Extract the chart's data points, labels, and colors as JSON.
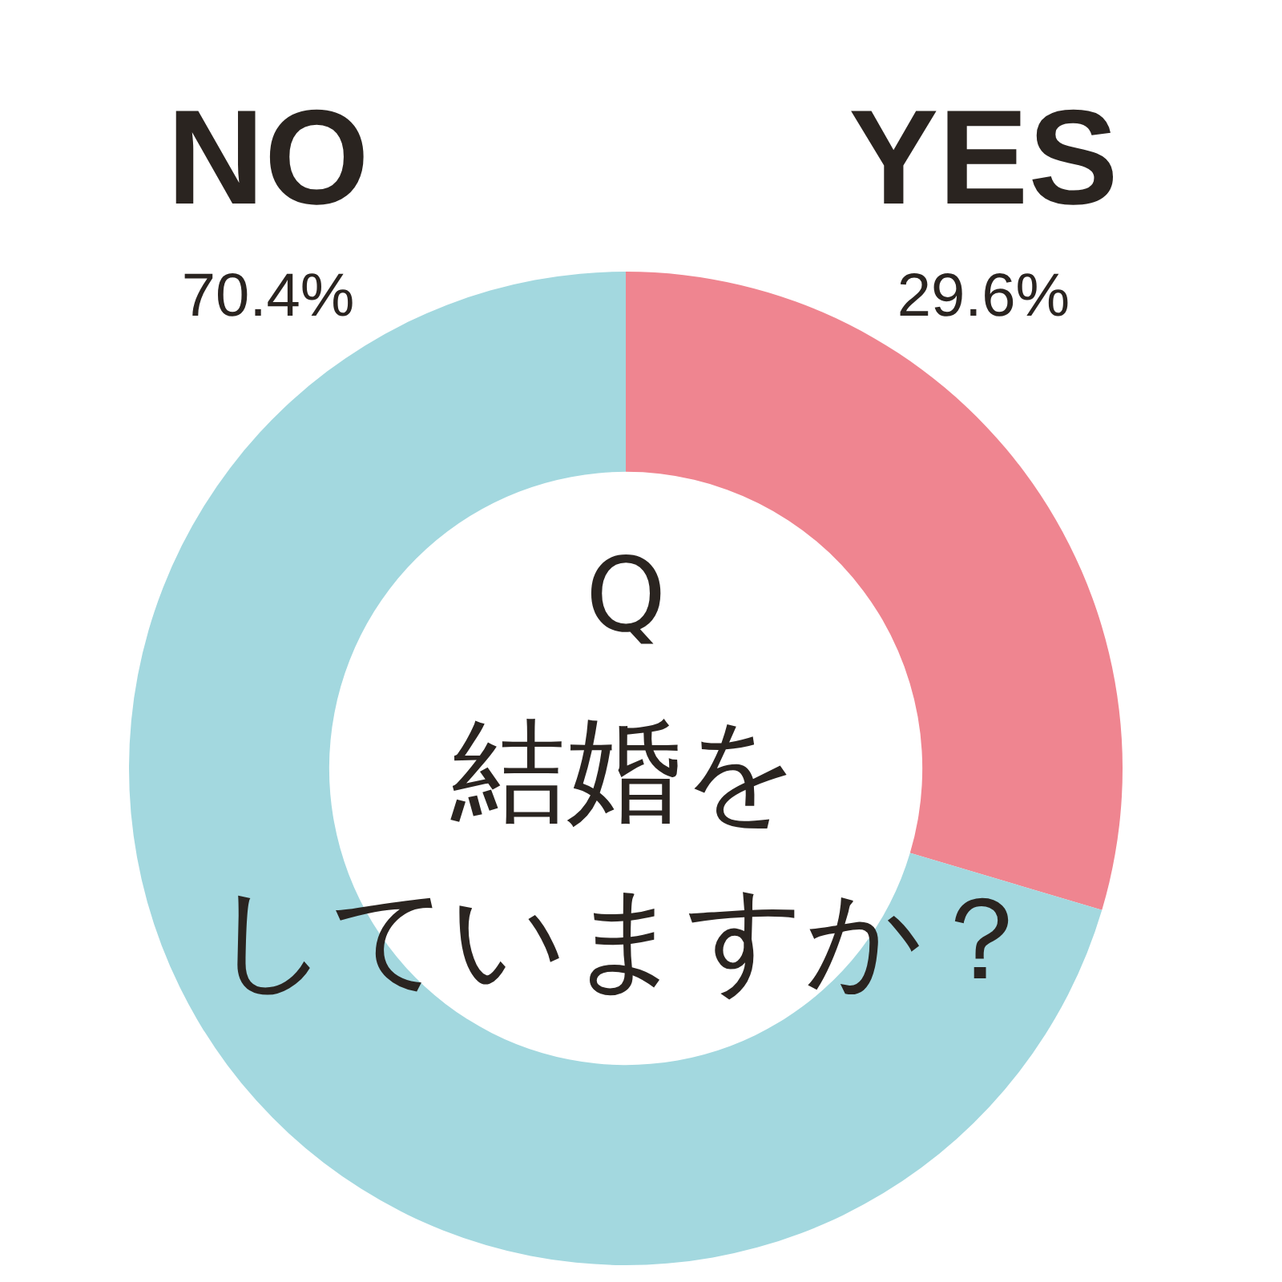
{
  "chart_data": {
    "type": "donut",
    "title": "Q",
    "annotations": [
      "結婚を",
      "していますか？"
    ],
    "categories": [
      "YES",
      "NO"
    ],
    "values": [
      29.6,
      70.4
    ],
    "colors": [
      "#ef8590",
      "#a3d8df"
    ],
    "value_labels": [
      "29.6%",
      "70.4%"
    ]
  }
}
